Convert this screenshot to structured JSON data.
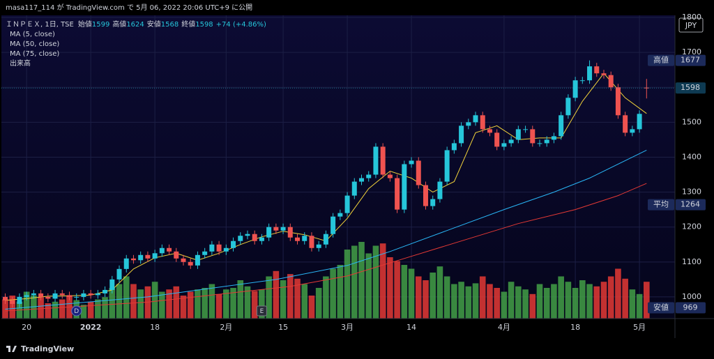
{
  "header": "masa117_114 が TradingView.com で 5月 06, 2022 20:06 UTC+9 に公開",
  "footer": "TradingView",
  "chart_data": {
    "type": "candlestick",
    "symbol": "ＩＮＰＥＸ, 1日, TSE",
    "ohlc_labels": [
      "始値",
      "高値",
      "安値",
      "終値"
    ],
    "change": "+74 (+4.86%)",
    "currency": "JPY",
    "volume_label": "出来高",
    "categories": [
      null,
      null,
      null,
      "20",
      null,
      null,
      null,
      null,
      null,
      null,
      null,
      null,
      "2022",
      null,
      null,
      null,
      null,
      null,
      null,
      null,
      null,
      "18",
      null,
      null,
      null,
      null,
      null,
      null,
      null,
      null,
      null,
      "2月",
      null,
      null,
      null,
      null,
      null,
      null,
      null,
      "15",
      null,
      null,
      null,
      null,
      null,
      null,
      null,
      null,
      "3月",
      null,
      null,
      null,
      null,
      null,
      null,
      null,
      null,
      "14",
      null,
      null,
      null,
      null,
      null,
      null,
      null,
      null,
      null,
      null,
      null,
      null,
      "4月",
      null,
      null,
      null,
      null,
      null,
      null,
      null,
      null,
      null,
      "18",
      null,
      null,
      null,
      null,
      null,
      null,
      null,
      null,
      "5月",
      null
    ],
    "open": [
      1000,
      990,
      980,
      1000,
      1005,
      1010,
      1000,
      995,
      1010,
      1005,
      1000,
      1000,
      1010,
      1005,
      1010,
      1020,
      1050,
      1080,
      1110,
      1105,
      1120,
      1110,
      1125,
      1140,
      1130,
      1110,
      1100,
      1090,
      1120,
      1130,
      1150,
      1130,
      1140,
      1160,
      1175,
      1180,
      1160,
      1170,
      1200,
      1190,
      1200,
      1170,
      1160,
      1175,
      1140,
      1150,
      1180,
      1230,
      1240,
      1290,
      1330,
      1340,
      1350,
      1430,
      1350,
      1340,
      1250,
      1380,
      1390,
      1320,
      1260,
      1280,
      1330,
      1420,
      1440,
      1490,
      1500,
      1520,
      1480,
      1470,
      1430,
      1440,
      1450,
      1480,
      1480,
      1440,
      1440,
      1450,
      1460,
      1520,
      1570,
      1620,
      1620,
      1660,
      1640,
      1635,
      1600,
      1520,
      1470,
      1480,
      1599
    ],
    "high": [
      1010,
      1000,
      1010,
      1015,
      1020,
      1020,
      1010,
      1020,
      1020,
      1015,
      1010,
      1020,
      1020,
      1020,
      1030,
      1060,
      1090,
      1120,
      1120,
      1130,
      1130,
      1135,
      1150,
      1150,
      1140,
      1120,
      1110,
      1130,
      1140,
      1160,
      1160,
      1150,
      1170,
      1185,
      1190,
      1190,
      1180,
      1210,
      1210,
      1210,
      1210,
      1180,
      1185,
      1185,
      1160,
      1190,
      1240,
      1250,
      1300,
      1340,
      1350,
      1360,
      1440,
      1440,
      1360,
      1350,
      1390,
      1400,
      1400,
      1330,
      1290,
      1340,
      1430,
      1450,
      1500,
      1510,
      1530,
      1530,
      1490,
      1480,
      1450,
      1460,
      1490,
      1490,
      1490,
      1450,
      1460,
      1470,
      1530,
      1580,
      1630,
      1630,
      1677,
      1670,
      1650,
      1645,
      1610,
      1530,
      1490,
      1534,
      1624
    ],
    "low": [
      980,
      969,
      970,
      990,
      995,
      990,
      985,
      985,
      995,
      990,
      990,
      990,
      995,
      995,
      1000,
      1010,
      1040,
      1070,
      1095,
      1095,
      1100,
      1100,
      1115,
      1120,
      1100,
      1090,
      1080,
      1080,
      1110,
      1120,
      1120,
      1120,
      1130,
      1150,
      1165,
      1150,
      1150,
      1160,
      1180,
      1180,
      1160,
      1150,
      1150,
      1130,
      1130,
      1140,
      1170,
      1220,
      1230,
      1280,
      1320,
      1330,
      1340,
      1340,
      1330,
      1240,
      1240,
      1370,
      1310,
      1250,
      1250,
      1270,
      1320,
      1410,
      1430,
      1480,
      1490,
      1470,
      1460,
      1420,
      1420,
      1430,
      1440,
      1470,
      1430,
      1430,
      1430,
      1440,
      1450,
      1510,
      1560,
      1610,
      1610,
      1630,
      1625,
      1590,
      1510,
      1460,
      1460,
      1470,
      1568
    ],
    "close": [
      990,
      980,
      1000,
      1005,
      1010,
      1000,
      995,
      1010,
      1005,
      1000,
      1000,
      1010,
      1005,
      1010,
      1020,
      1050,
      1080,
      1110,
      1105,
      1120,
      1110,
      1125,
      1140,
      1130,
      1110,
      1100,
      1090,
      1120,
      1130,
      1150,
      1130,
      1140,
      1160,
      1175,
      1180,
      1160,
      1170,
      1200,
      1190,
      1200,
      1170,
      1160,
      1175,
      1140,
      1150,
      1180,
      1230,
      1240,
      1290,
      1330,
      1340,
      1350,
      1430,
      1350,
      1340,
      1250,
      1380,
      1390,
      1320,
      1260,
      1280,
      1330,
      1420,
      1440,
      1490,
      1500,
      1520,
      1480,
      1470,
      1430,
      1440,
      1450,
      1480,
      1480,
      1440,
      1440,
      1450,
      1460,
      1520,
      1570,
      1620,
      1620,
      1660,
      1640,
      1635,
      1600,
      1520,
      1470,
      1480,
      1524,
      1598
    ],
    "volume": [
      25,
      30,
      22,
      35,
      30,
      28,
      20,
      22,
      25,
      30,
      24,
      18,
      22,
      25,
      28,
      40,
      45,
      55,
      45,
      38,
      42,
      48,
      35,
      38,
      42,
      30,
      35,
      38,
      40,
      45,
      32,
      38,
      40,
      50,
      42,
      36,
      38,
      55,
      62,
      50,
      58,
      52,
      45,
      30,
      40,
      55,
      65,
      70,
      90,
      95,
      100,
      85,
      95,
      98,
      80,
      75,
      70,
      65,
      55,
      50,
      60,
      68,
      55,
      45,
      48,
      42,
      46,
      55,
      45,
      40,
      35,
      48,
      42,
      38,
      32,
      45,
      40,
      45,
      55,
      48,
      40,
      50,
      45,
      42,
      48,
      55,
      65,
      52,
      38,
      32,
      48
    ],
    "up_color": "#26c6da",
    "down_color": "#ef5350",
    "volume_up_color": "#43a047",
    "volume_down_color": "#e53935",
    "ma": [
      {
        "name": "MA (5, close)",
        "color": "#f2d33a",
        "x": [
          0,
          3,
          6,
          9,
          12,
          15,
          18,
          21,
          24,
          27,
          30,
          33,
          36,
          39,
          42,
          45,
          48,
          51,
          54,
          57,
          60,
          63,
          66,
          69,
          72,
          75,
          78,
          81,
          84,
          87,
          90
        ],
        "values": [
          990,
          995,
          1002,
          1003,
          1005,
          1020,
          1080,
          1112,
          1125,
          1105,
          1125,
          1150,
          1172,
          1188,
          1178,
          1160,
          1225,
          1310,
          1360,
          1340,
          1300,
          1330,
          1470,
          1490,
          1450,
          1455,
          1455,
          1560,
          1640,
          1570,
          1525
        ]
      },
      {
        "name": "MA (50, close)",
        "color": "#29b6f6",
        "x": [
          0,
          20,
          38,
          48,
          54,
          62,
          70,
          77,
          82,
          90
        ],
        "values": [
          965,
          1000,
          1050,
          1090,
          1130,
          1190,
          1250,
          1300,
          1340,
          1420
        ]
      },
      {
        "name": "MA (75, close)",
        "color": "#e53935",
        "x": [
          0,
          20,
          40,
          48,
          56,
          64,
          72,
          80,
          86,
          90
        ],
        "values": [
          960,
          985,
          1030,
          1060,
          1110,
          1160,
          1210,
          1250,
          1290,
          1325
        ]
      }
    ],
    "price_labels": [
      {
        "label": "高値",
        "value": 1677
      },
      {
        "value": 1598
      },
      {
        "label": "平均",
        "value": 1264
      },
      {
        "label": "安値",
        "value": 969
      }
    ],
    "events": [
      {
        "label": "D",
        "index": 10
      },
      {
        "label": "E",
        "index": 36
      }
    ],
    "ylim": [
      938,
      1806
    ],
    "yticks": [
      1000,
      1100,
      1200,
      1300,
      1400,
      1500,
      1600,
      1700,
      1800
    ],
    "grid": true
  }
}
